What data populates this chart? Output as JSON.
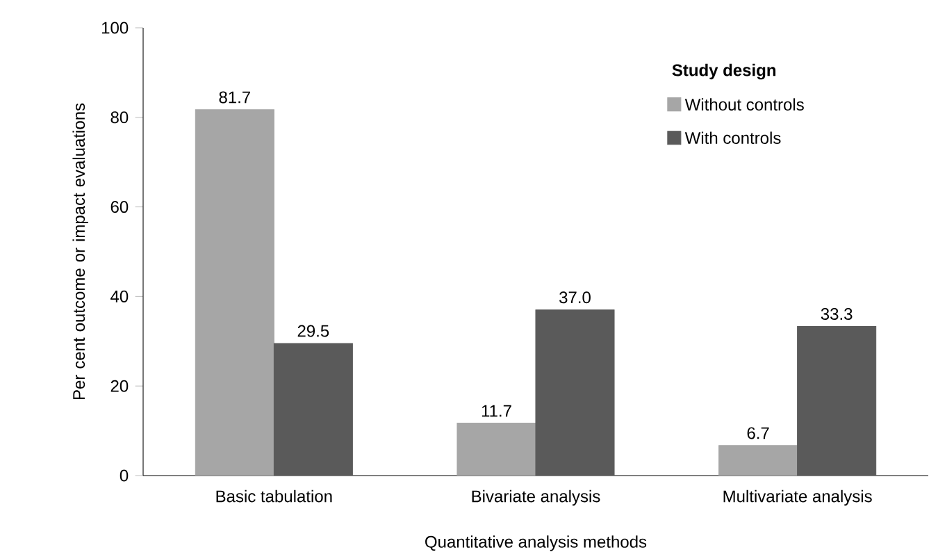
{
  "chart_data": {
    "type": "bar",
    "xlabel": "Quantitative analysis methods",
    "ylabel": "Per cent outcome or impact evaluations",
    "legend_title": "Study design",
    "categories": [
      "Basic tabulation",
      "Bivariate analysis",
      "Multivariate analysis"
    ],
    "series": [
      {
        "name": "Without controls",
        "color": "#a6a6a6",
        "values": [
          81.7,
          11.7,
          6.7
        ],
        "value_labels": [
          "81.7",
          "11.7",
          "6.7"
        ]
      },
      {
        "name": "With controls",
        "color": "#5a5a5a",
        "values": [
          29.5,
          37.0,
          33.3
        ],
        "value_labels": [
          "29.5",
          "37.0",
          "33.3"
        ]
      }
    ],
    "ylim": [
      0,
      100
    ],
    "yticks": [
      0,
      20,
      40,
      60,
      80,
      100
    ],
    "legend": "top right"
  }
}
